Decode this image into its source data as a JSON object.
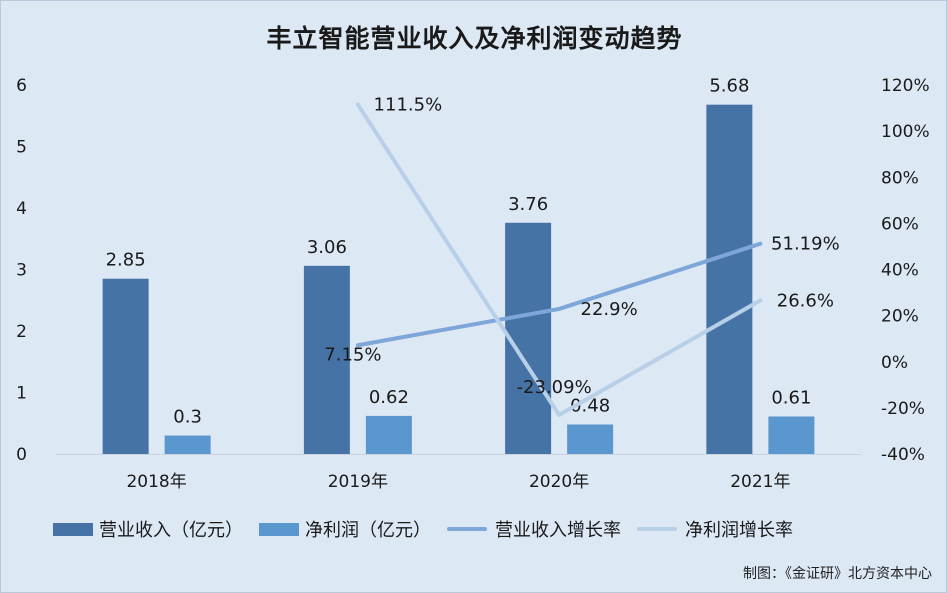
{
  "chart_data": {
    "type": "bar",
    "title": "丰立智能营业收入及净利润变动趋势",
    "categories": [
      "2018年",
      "2019年",
      "2020年",
      "2021年"
    ],
    "y_left": {
      "ticks": [
        "0",
        "1",
        "2",
        "3",
        "4",
        "5",
        "6"
      ],
      "range": [
        0,
        6
      ]
    },
    "y_right": {
      "ticks": [
        "-40%",
        "-20%",
        "0%",
        "20%",
        "40%",
        "60%",
        "80%",
        "100%",
        "120%"
      ],
      "range": [
        -40,
        120
      ]
    },
    "bar_series": [
      {
        "name": "营业收入（亿元）",
        "values": [
          2.85,
          3.06,
          3.76,
          5.68
        ],
        "labels": [
          "2.85",
          "3.06",
          "3.76",
          "5.68"
        ],
        "color": "#4673a6"
      },
      {
        "name": "净利润（亿元）",
        "values": [
          0.3,
          0.62,
          0.48,
          0.61
        ],
        "labels": [
          "0.3",
          "0.62",
          "0.48",
          "0.61"
        ],
        "color": "#5b97cf"
      }
    ],
    "line_series": [
      {
        "name": "营业收入增长率",
        "values": [
          null,
          7.15,
          22.9,
          51.19
        ],
        "labels": [
          null,
          "7.15%",
          "22.9%",
          "51.19%"
        ],
        "color": "#7ea6d8"
      },
      {
        "name": "净利润增长率",
        "values": [
          null,
          111.5,
          -23.09,
          26.6
        ],
        "labels": [
          null,
          "111.5%",
          "-23.09%",
          "26.6%"
        ],
        "color": "#b8cfe8"
      }
    ],
    "legend_position": "bottom",
    "grid": false
  },
  "source": "制图：《金证研》北方资本中心"
}
